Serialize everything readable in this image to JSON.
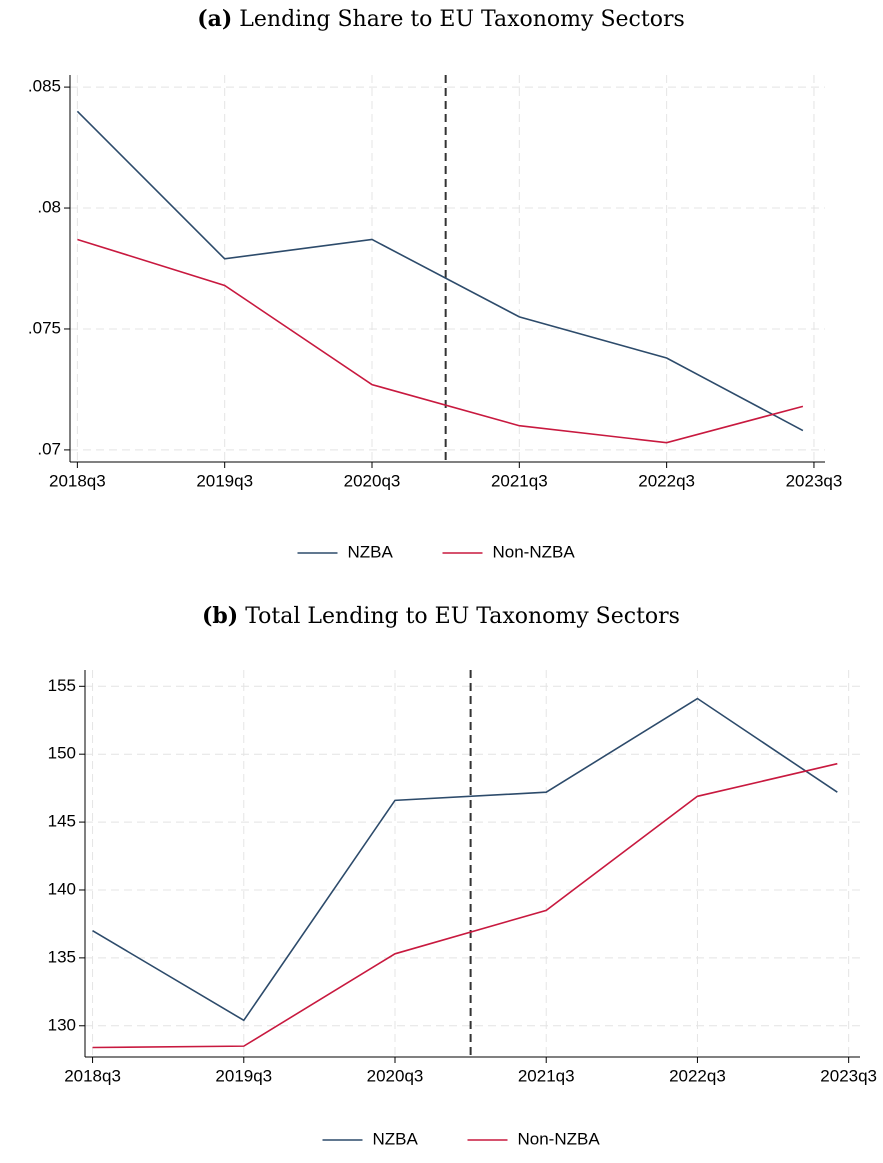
{
  "chart_data": [
    {
      "type": "line",
      "label": "(a)",
      "title": "Lending Share to EU Taxonomy Sectors",
      "x": [
        234,
        238,
        242,
        246,
        250,
        253.7
      ],
      "series": [
        {
          "name": "NZBA",
          "color": "#2d4b6b",
          "values": [
            0.084,
            0.0779,
            0.0787,
            0.0755,
            0.0738,
            0.0708
          ]
        },
        {
          "name": "Non-NZBA",
          "color": "#c8193f",
          "values": [
            0.0787,
            0.0768,
            0.0727,
            0.071,
            0.0703,
            0.0718
          ]
        }
      ],
      "xlim": [
        233.8,
        254.3
      ],
      "xticks": [
        {
          "value": 234,
          "label": "2018q3"
        },
        {
          "value": 238,
          "label": "2019q3"
        },
        {
          "value": 242,
          "label": "2020q3"
        },
        {
          "value": 246,
          "label": "2021q3"
        },
        {
          "value": 250,
          "label": "2022q3"
        },
        {
          "value": 254,
          "label": "2023q3"
        }
      ],
      "ylim": [
        0.0695,
        0.0855
      ],
      "yticks": [
        {
          "value": 0.07,
          "label": ".07"
        },
        {
          "value": 0.075,
          "label": ".075"
        },
        {
          "value": 0.08,
          "label": ".08"
        },
        {
          "value": 0.085,
          "label": ".085"
        }
      ],
      "vline": 244,
      "grid": true,
      "legend": "bottom"
    },
    {
      "type": "line",
      "label": "(b)",
      "title": "Total Lending to EU Taxonomy Sectors",
      "x": [
        234,
        238,
        242,
        246,
        250,
        253.7
      ],
      "series": [
        {
          "name": "NZBA",
          "color": "#2d4b6b",
          "values": [
            137.0,
            130.4,
            146.6,
            147.2,
            154.1,
            147.2
          ]
        },
        {
          "name": "Non-NZBA",
          "color": "#c8193f",
          "values": [
            128.4,
            128.5,
            135.3,
            138.5,
            146.9,
            149.3
          ]
        }
      ],
      "xlim": [
        233.8,
        254.3
      ],
      "xticks": [
        {
          "value": 234,
          "label": "2018q3"
        },
        {
          "value": 238,
          "label": "2019q3"
        },
        {
          "value": 242,
          "label": "2020q3"
        },
        {
          "value": 246,
          "label": "2021q3"
        },
        {
          "value": 250,
          "label": "2022q3"
        },
        {
          "value": 254,
          "label": "2023q3"
        }
      ],
      "ylim": [
        127.7,
        156.2
      ],
      "yticks": [
        130,
        135,
        140,
        145,
        150,
        155
      ],
      "vline": 244,
      "grid": true,
      "legend": "bottom"
    }
  ]
}
